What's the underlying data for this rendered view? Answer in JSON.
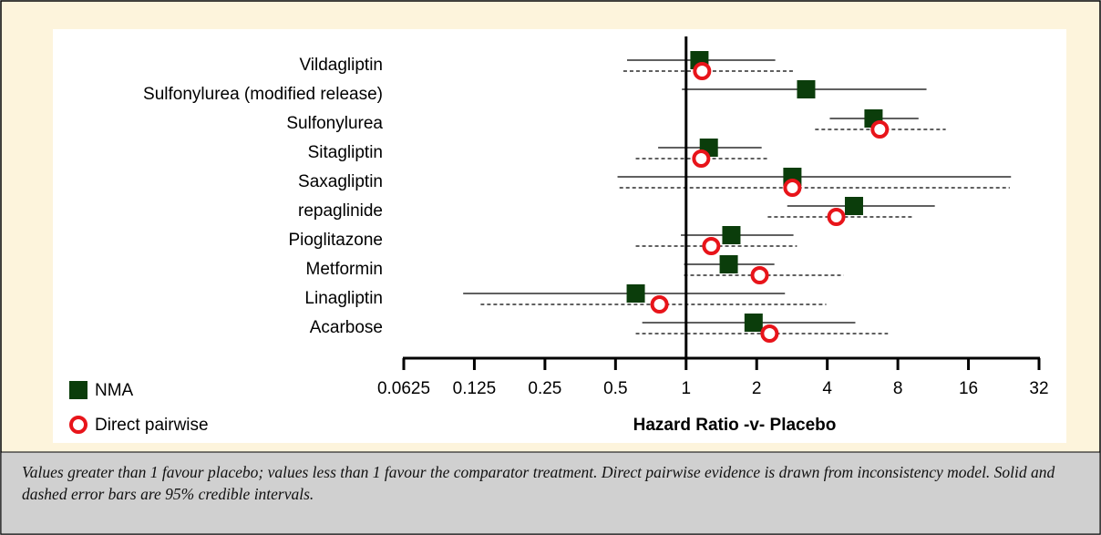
{
  "chart_data": {
    "type": "forest",
    "x_label": "Hazard Ratio -v- Placebo",
    "log_scale": true,
    "log_base": 2,
    "xlim": [
      0.0625,
      32
    ],
    "xticks": [
      0.0625,
      0.125,
      0.25,
      0.5,
      1,
      2,
      4,
      8,
      16,
      32
    ],
    "reference_line": 1,
    "categories": [
      "Vildagliptin",
      "Sulfonylurea (modified release)",
      "Sulfonylurea",
      "Sitagliptin",
      "Saxagliptin",
      "repaglinide",
      "Pioglitazone",
      "Metformin",
      "Linagliptin",
      "Acarbose"
    ],
    "legend": "bottom-left",
    "series": [
      {
        "name": "NMA",
        "color": "#0b3d0b",
        "marker": "square",
        "line": "solid",
        "values": [
          1.14,
          3.25,
          6.3,
          1.25,
          2.84,
          5.2,
          1.56,
          1.52,
          0.61,
          1.94
        ],
        "lower": [
          0.56,
          0.96,
          4.1,
          0.76,
          0.51,
          2.7,
          0.95,
          0.98,
          0.112,
          0.65
        ],
        "upper": [
          2.4,
          10.6,
          9.8,
          2.1,
          24.3,
          11.5,
          2.87,
          2.38,
          2.64,
          5.27
        ]
      },
      {
        "name": "Direct pairwise",
        "color": "#e8141a",
        "marker": "circle",
        "line": "dashed",
        "values": [
          1.17,
          null,
          6.7,
          1.16,
          2.84,
          4.37,
          1.28,
          2.06,
          0.77,
          2.27
        ],
        "lower": [
          0.54,
          null,
          3.55,
          0.61,
          0.52,
          2.23,
          0.61,
          0.98,
          0.133,
          0.61
        ],
        "upper": [
          2.87,
          null,
          12.8,
          2.27,
          24,
          9.3,
          2.97,
          4.7,
          3.96,
          7.26
        ]
      }
    ]
  },
  "caption": "Values greater than 1 favour placebo; values less than 1 favour the comparator treatment. Direct pairwise evidence is drawn from inconsistency model. Solid and dashed error bars are 95% credible intervals."
}
